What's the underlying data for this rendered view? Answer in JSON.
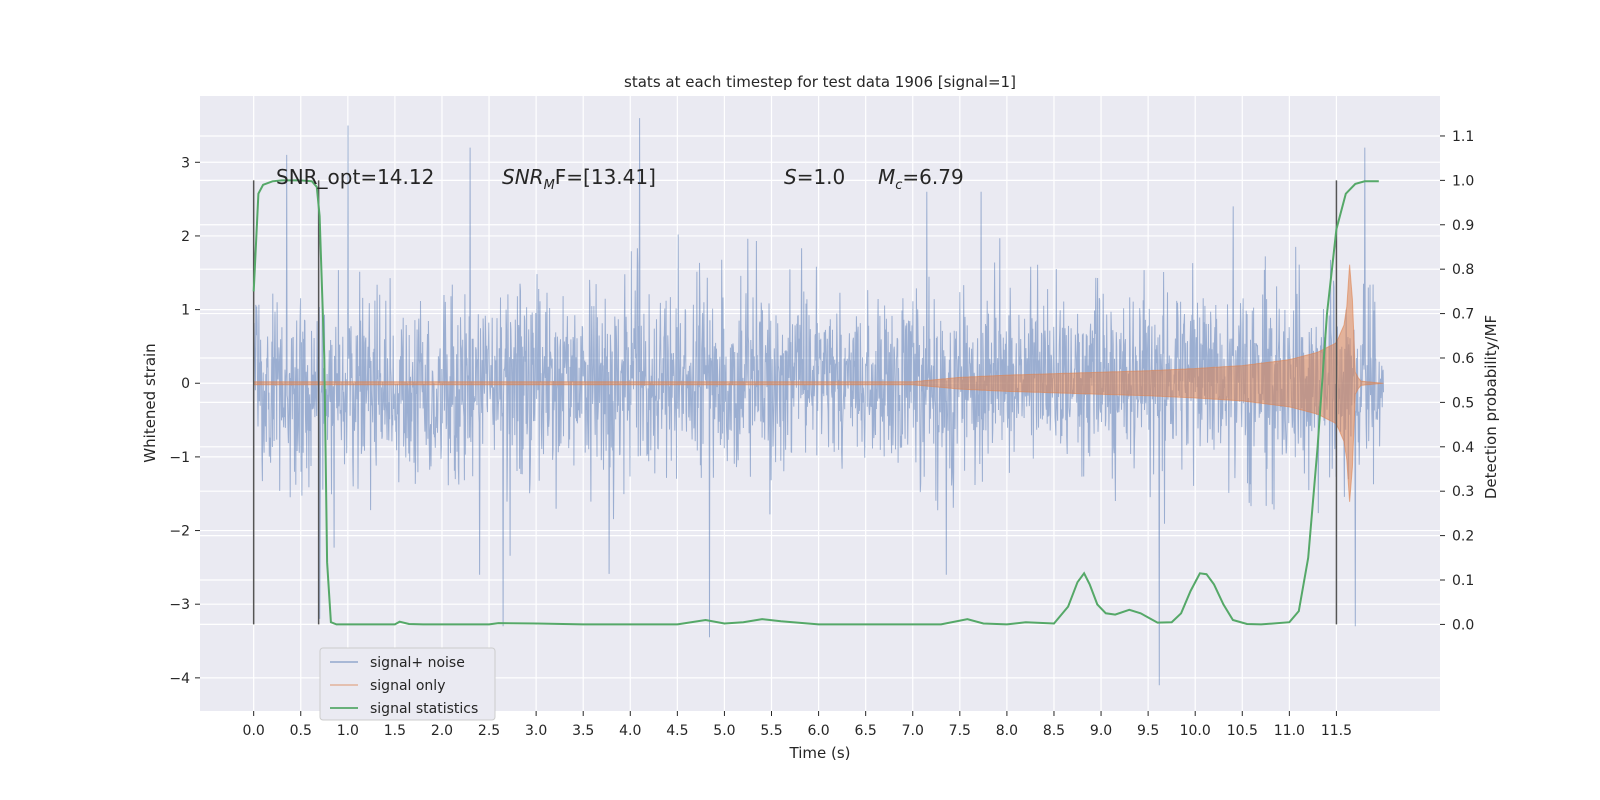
{
  "chart_data": {
    "type": "line",
    "title": "stats at each timestep for test data 1906 [signal=1]",
    "xlabel": "Time (s)",
    "ylabel": "Whitened strain",
    "y2label": "Detection probability/MF",
    "xlim": [
      -0.57,
      12.6
    ],
    "ylim": [
      -4.45,
      3.9
    ],
    "y2lim": [
      -0.195,
      1.19
    ],
    "xticks": [
      "0.0",
      "0.5",
      "1.0",
      "1.5",
      "2.0",
      "2.5",
      "3.0",
      "3.5",
      "4.0",
      "4.5",
      "5.0",
      "5.5",
      "6.0",
      "6.5",
      "7.0",
      "7.5",
      "8.0",
      "8.5",
      "9.0",
      "9.5",
      "10.0",
      "10.5",
      "11.0",
      "11.5"
    ],
    "yticks": [
      "3",
      "2",
      "1",
      "0",
      "−1",
      "−2",
      "−3",
      "−4"
    ],
    "y2ticks": [
      "1.1",
      "1.0",
      "0.9",
      "0.8",
      "0.7",
      "0.6",
      "0.5",
      "0.4",
      "0.3",
      "0.2",
      "0.1",
      "0.0"
    ],
    "grid": true,
    "legend": {
      "placement": "lower-left",
      "entries": [
        "signal+ noise",
        "signal only",
        "signal statistics"
      ]
    },
    "annotations": {
      "snr_opt": "SNR_opt=14.12",
      "snr_mf_sym": "SNR",
      "snr_mf_sub": "M",
      "snr_mf_rest": "F=[13.41]",
      "s_sym": "S",
      "s_rest": "=1.0",
      "mc_sym": "M",
      "mc_sub": "c",
      "mc_rest": "=6.79"
    },
    "colors": {
      "noise": "#4c72b0",
      "signal": "#dd8452",
      "stat": "#55a868",
      "vline": "#555555",
      "background": "#eaeaf2"
    },
    "vlines_x": [
      0.0,
      0.69,
      11.5
    ],
    "series": [
      {
        "name": "signal+ noise",
        "x_range": [
          0.0,
          12.0
        ],
        "envelope_extremes": {
          "max": [
            [
              1.0,
              3.5
            ],
            [
              4.1,
              3.6
            ],
            [
              11.8,
              3.2
            ],
            [
              0.35,
              3.1
            ],
            [
              2.3,
              3.2
            ]
          ],
          "min": [
            [
              9.62,
              -4.1
            ],
            [
              4.84,
              -3.45
            ],
            [
              2.65,
              -3.3
            ],
            [
              11.7,
              -3.3
            ],
            [
              0.7,
              -3.2
            ]
          ]
        }
      },
      {
        "name": "signal only",
        "x": [
          0.0,
          7.0,
          7.5,
          8.0,
          8.5,
          9.0,
          9.5,
          10.0,
          10.5,
          11.0,
          11.3,
          11.5,
          11.6,
          11.65,
          11.7,
          11.75,
          12.0
        ],
        "amplitude": [
          0.02,
          0.02,
          0.08,
          0.11,
          0.13,
          0.15,
          0.17,
          0.2,
          0.24,
          0.32,
          0.42,
          0.55,
          0.85,
          1.8,
          0.15,
          0.03,
          0.0
        ]
      },
      {
        "name": "signal statistics",
        "x": [
          0.0,
          0.05,
          0.1,
          0.2,
          0.3,
          0.5,
          0.62,
          0.67,
          0.7,
          0.75,
          0.78,
          0.82,
          0.88,
          0.95,
          1.0,
          1.5,
          1.55,
          1.65,
          1.8,
          2.5,
          2.6,
          3.0,
          3.5,
          4.5,
          4.8,
          5.0,
          5.2,
          5.4,
          5.6,
          6.0,
          7.3,
          7.58,
          7.75,
          8.0,
          8.2,
          8.5,
          8.65,
          8.75,
          8.82,
          8.88,
          8.96,
          9.05,
          9.15,
          9.3,
          9.42,
          9.6,
          9.75,
          9.85,
          9.95,
          10.05,
          10.12,
          10.2,
          10.3,
          10.4,
          10.55,
          10.7,
          11.0,
          11.1,
          11.2,
          11.3,
          11.4,
          11.5,
          11.6,
          11.7,
          11.8,
          11.95
        ],
        "values": [
          0.75,
          0.97,
          0.99,
          0.998,
          1.0,
          1.0,
          0.998,
          0.985,
          0.92,
          0.6,
          0.14,
          0.005,
          0.0,
          0.0,
          0.0,
          0.0,
          0.006,
          0.001,
          0.0,
          0.0,
          0.003,
          0.002,
          0.0,
          0.0,
          0.01,
          0.002,
          0.005,
          0.012,
          0.007,
          0.0,
          0.0,
          0.012,
          0.002,
          0.0,
          0.005,
          0.002,
          0.04,
          0.095,
          0.115,
          0.09,
          0.045,
          0.025,
          0.022,
          0.033,
          0.025,
          0.004,
          0.005,
          0.025,
          0.075,
          0.115,
          0.113,
          0.09,
          0.045,
          0.01,
          0.001,
          0.0,
          0.005,
          0.03,
          0.15,
          0.4,
          0.7,
          0.89,
          0.97,
          0.992,
          0.998,
          0.998
        ]
      }
    ]
  }
}
